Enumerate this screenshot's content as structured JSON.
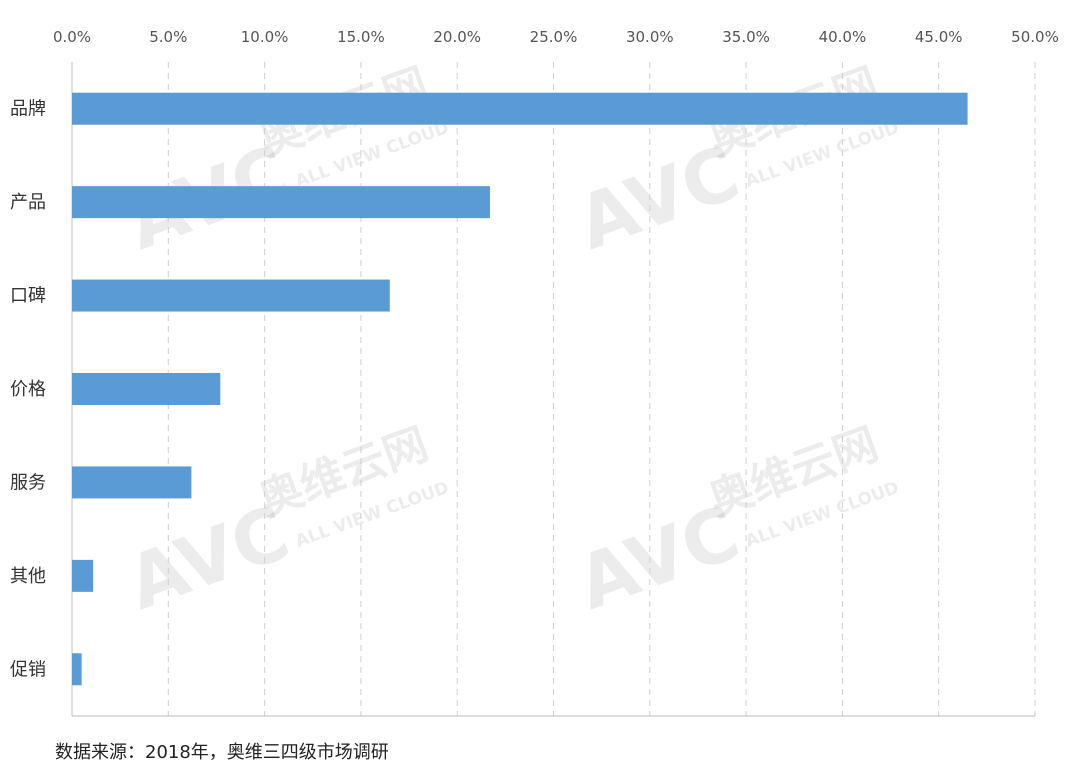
{
  "chart_data": {
    "type": "bar",
    "orientation": "horizontal",
    "categories": [
      "品牌",
      "产品",
      "口碑",
      "价格",
      "服务",
      "其他",
      "促销"
    ],
    "values": [
      46.5,
      21.7,
      16.5,
      7.7,
      6.2,
      1.1,
      0.5
    ],
    "value_unit": "%",
    "xlim": [
      0,
      50
    ],
    "x_ticks": [
      "0.0%",
      "5.0%",
      "10.0%",
      "15.0%",
      "20.0%",
      "25.0%",
      "30.0%",
      "35.0%",
      "40.0%",
      "45.0%",
      "50.0%"
    ],
    "x_axis_position": "top",
    "grid": "vertical dashed",
    "bar_color": "#5B9BD5",
    "legend": "none"
  },
  "watermark": {
    "logo": "AVC",
    "brand_cn": "奥维云网",
    "brand_en": "ALL VIEW CLOUD"
  },
  "source_note": "数据来源：2018年，奥维三四级市场调研"
}
